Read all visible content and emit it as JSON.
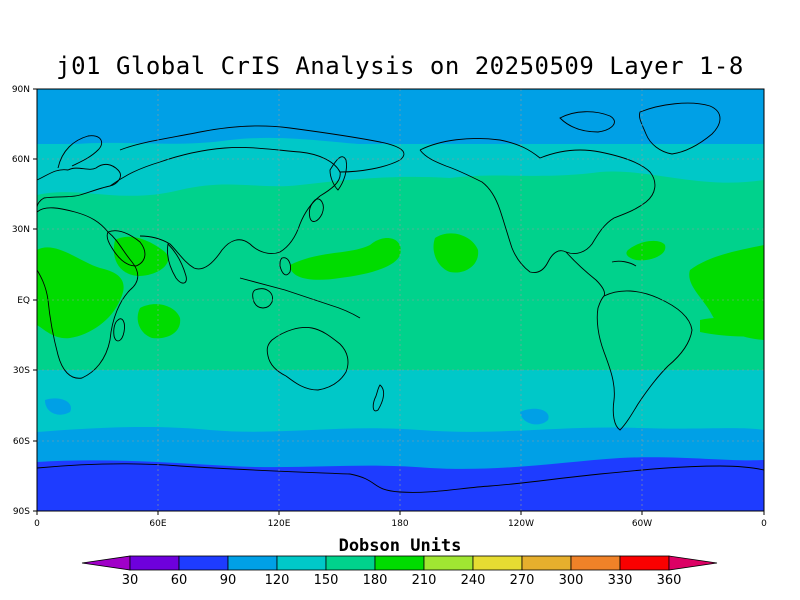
{
  "title": "j01 Global CrIS Analysis on 20250509 Layer 1-8",
  "lat_labels": [
    "90N",
    "60N",
    "30N",
    "EQ",
    "30S",
    "60S",
    "90S"
  ],
  "lon_labels": [
    "0",
    "60E",
    "120E",
    "180",
    "120W",
    "60W",
    "0"
  ],
  "colorbar": {
    "title": "Dobson Units",
    "values": [
      "30",
      "60",
      "90",
      "120",
      "150",
      "180",
      "210",
      "240",
      "270",
      "300",
      "330",
      "360"
    ],
    "colors": [
      "#a000c8",
      "#6e00dc",
      "#1e3cff",
      "#00a0e6",
      "#00c8c8",
      "#00d28c",
      "#00dc00",
      "#a0e632",
      "#e6dc32",
      "#e6af2d",
      "#f08228",
      "#fa0000",
      "#dc0064"
    ]
  },
  "field_colors": {
    "60_90": "#1e3cff",
    "90_120": "#00a0e6",
    "120_150": "#00c8c8",
    "150_180": "#00d28c",
    "180_210": "#00dc00"
  }
}
